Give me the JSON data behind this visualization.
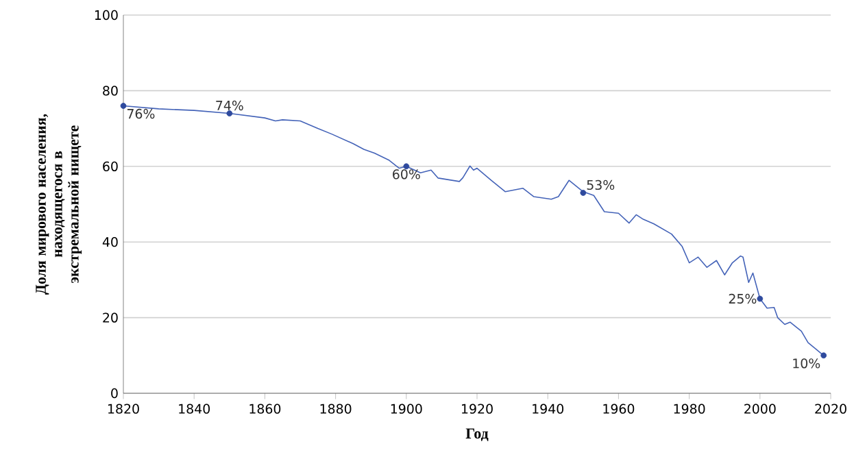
{
  "chart_data": {
    "type": "line",
    "xlabel": "Год",
    "ylabel": "Доля мирового населения, находящегося в экстремальной нищете",
    "xlim": [
      1820,
      2020
    ],
    "ylim": [
      0,
      100
    ],
    "xticks": [
      1820,
      1840,
      1860,
      1880,
      1900,
      1920,
      1940,
      1960,
      1980,
      2000,
      2020
    ],
    "yticks": [
      0,
      20,
      40,
      60,
      80,
      100
    ],
    "grid": "y",
    "series": [
      {
        "color": "#4463b8",
        "x": [
          1820,
          1830,
          1840,
          1850,
          1860,
          1863,
          1865,
          1870,
          1875,
          1879,
          1885,
          1888,
          1891,
          1895,
          1898,
          1900,
          1904,
          1907,
          1909,
          1915,
          1916,
          1918,
          1919,
          1920,
          1924,
          1928,
          1933,
          1936,
          1941,
          1943,
          1946,
          1950,
          1953,
          1956,
          1960,
          1963,
          1965,
          1967,
          1970,
          1975,
          1978,
          1980,
          1982.5,
          1985,
          1987.7,
          1990,
          1992.2,
          1994.5,
          1995.2,
          1996.8,
          1998,
          2000,
          2002,
          2004,
          2005,
          2007,
          2008.5,
          2011.7,
          2013.6,
          2018
        ],
        "values": [
          76,
          75.2,
          74.8,
          74,
          72.8,
          72,
          72.3,
          72,
          70,
          68.5,
          66,
          64.5,
          63.5,
          61.7,
          59.5,
          60,
          58.3,
          59,
          56.9,
          56,
          57,
          60.1,
          59,
          59.5,
          56.3,
          53.3,
          54.2,
          52,
          51.3,
          52,
          56.3,
          53.3,
          52.3,
          48,
          47.6,
          45,
          47.2,
          46,
          44.8,
          42.1,
          38.8,
          34.5,
          36,
          33.3,
          35.1,
          31.3,
          34.5,
          36.3,
          36,
          29.3,
          31.8,
          25,
          22.5,
          22.7,
          20,
          18.2,
          18.8,
          16.4,
          13.4,
          10
        ]
      },
      {
        "type": "scatter",
        "color": "#2f4a9e",
        "x": [
          1820,
          1850,
          1900,
          1950,
          2000,
          2018
        ],
        "values": [
          76,
          74,
          60,
          53,
          25,
          10
        ],
        "value_labels": [
          "76%",
          "74%",
          "60%",
          "53%",
          "25%",
          "10%"
        ]
      }
    ]
  }
}
